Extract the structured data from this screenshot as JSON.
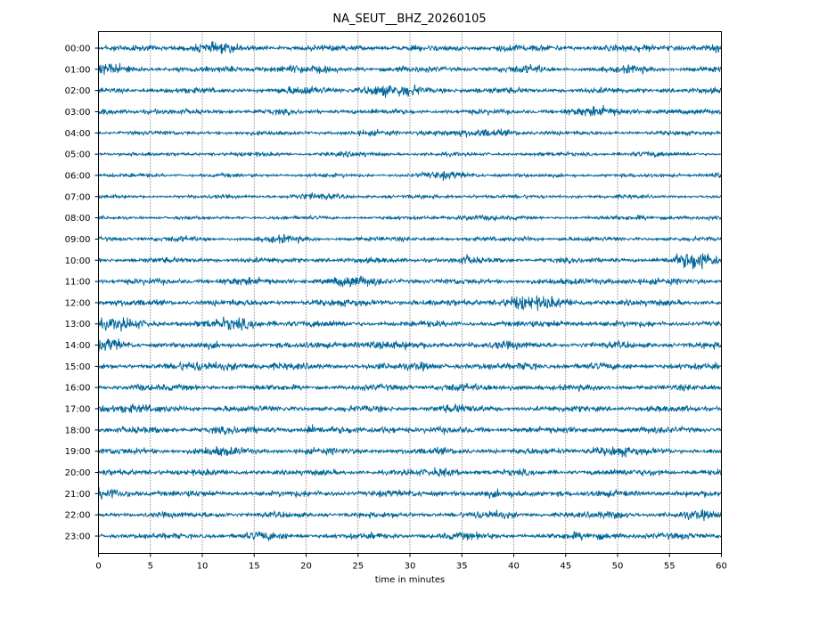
{
  "chart_data": {
    "type": "line",
    "subtype": "helicorder",
    "title": "NA_SEUT__BHZ_20260105",
    "xlabel": "time in minutes",
    "ylabel": "",
    "xlim": [
      0,
      60
    ],
    "x_ticks": [
      "0",
      "5",
      "10",
      "15",
      "20",
      "25",
      "30",
      "35",
      "40",
      "45",
      "50",
      "55",
      "60"
    ],
    "rows": [
      "00:00",
      "01:00",
      "02:00",
      "03:00",
      "04:00",
      "05:00",
      "06:00",
      "07:00",
      "08:00",
      "09:00",
      "10:00",
      "11:00",
      "12:00",
      "13:00",
      "14:00",
      "15:00",
      "16:00",
      "17:00",
      "18:00",
      "19:00",
      "20:00",
      "21:00",
      "22:00",
      "23:00"
    ],
    "row_relative_amplitude": [
      1.0,
      1.0,
      0.95,
      0.9,
      0.75,
      0.65,
      0.65,
      0.6,
      0.6,
      0.75,
      0.9,
      1.0,
      1.1,
      1.05,
      1.1,
      1.1,
      1.0,
      1.05,
      1.1,
      1.1,
      1.0,
      1.1,
      0.95,
      1.0
    ],
    "grid": "vertical dotted at every 5 minutes",
    "series_color": "#006699"
  }
}
